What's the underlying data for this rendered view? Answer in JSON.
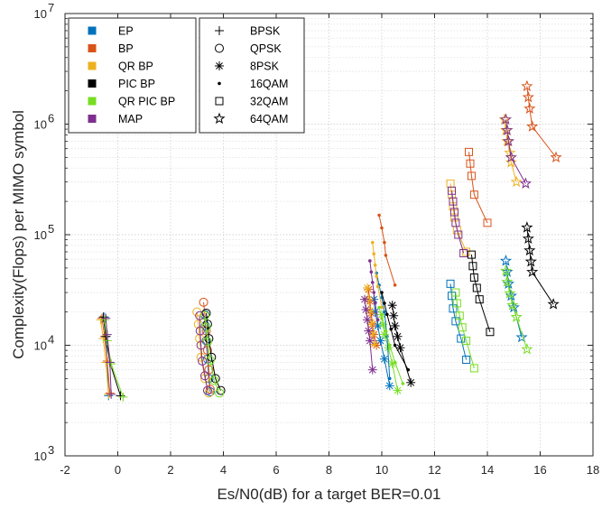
{
  "chart_data": {
    "type": "line",
    "xlabel": "Es/N0(dB) for a target BER=0.01",
    "ylabel": "Complexity(Flops) per MIMO symbol",
    "xlim": [
      -2,
      18
    ],
    "ylim": [
      1000,
      10000000
    ],
    "yscale": "log",
    "grid": true,
    "x_ticks": [
      "-2",
      "0",
      "2",
      "4",
      "6",
      "8",
      "10",
      "12",
      "14",
      "16",
      "18"
    ],
    "y_ticks": [
      {
        "base": "10",
        "exp": "3",
        "value": 1000
      },
      {
        "base": "10",
        "exp": "4",
        "value": 10000
      },
      {
        "base": "10",
        "exp": "5",
        "value": 100000
      },
      {
        "base": "10",
        "exp": "6",
        "value": 1000000
      },
      {
        "base": "10",
        "exp": "7",
        "value": 10000000
      }
    ],
    "algorithms": [
      {
        "name": "EP",
        "color": "#0072BD"
      },
      {
        "name": "BP",
        "color": "#D95319"
      },
      {
        "name": "QR BP",
        "color": "#EDB120"
      },
      {
        "name": "PIC BP",
        "color": "#000000"
      },
      {
        "name": "QR PIC BP",
        "color": "#77DD22"
      },
      {
        "name": "MAP",
        "color": "#7E2F8E"
      }
    ],
    "modulations": [
      {
        "name": "BPSK",
        "marker": "plus"
      },
      {
        "name": "QPSK",
        "marker": "circle"
      },
      {
        "name": "8PSK",
        "marker": "asterisk"
      },
      {
        "name": "16QAM",
        "marker": "dot"
      },
      {
        "name": "32QAM",
        "marker": "square"
      },
      {
        "name": "64QAM",
        "marker": "star"
      }
    ],
    "series": [
      {
        "algorithm": "EP",
        "modulation": "BPSK",
        "points": [
          [
            -0.5,
            18000
          ],
          [
            -0.45,
            12000
          ],
          [
            -0.4,
            7000
          ],
          [
            -0.35,
            3500
          ]
        ]
      },
      {
        "algorithm": "BP",
        "modulation": "BPSK",
        "points": [
          [
            -0.6,
            17500
          ],
          [
            -0.5,
            12000
          ],
          [
            -0.4,
            7200
          ],
          [
            -0.3,
            3700
          ]
        ]
      },
      {
        "algorithm": "QR BP",
        "modulation": "BPSK",
        "points": [
          [
            -0.65,
            17000
          ],
          [
            -0.55,
            11500
          ],
          [
            -0.45,
            7000
          ],
          [
            -0.35,
            3600
          ]
        ]
      },
      {
        "algorithm": "PIC BP",
        "modulation": "BPSK",
        "points": [
          [
            -0.55,
            18000
          ],
          [
            -0.45,
            12000
          ],
          [
            -0.3,
            7000
          ],
          [
            0.1,
            3500
          ]
        ]
      },
      {
        "algorithm": "QR PIC BP",
        "modulation": "BPSK",
        "points": [
          [
            -0.5,
            17000
          ],
          [
            -0.4,
            11000
          ],
          [
            -0.25,
            6800
          ],
          [
            0.2,
            3400
          ]
        ]
      },
      {
        "algorithm": "MAP",
        "modulation": "BPSK",
        "points": [
          [
            -0.45,
            17500
          ],
          [
            -0.4,
            12500
          ],
          [
            -0.3,
            7000
          ],
          [
            -0.25,
            3600
          ]
        ]
      },
      {
        "algorithm": "EP",
        "modulation": "QPSK",
        "points": [
          [
            3.3,
            19000
          ],
          [
            3.32,
            15000
          ],
          [
            3.35,
            11000
          ],
          [
            3.4,
            7500
          ],
          [
            3.45,
            5000
          ],
          [
            3.5,
            3800
          ]
        ]
      },
      {
        "algorithm": "BP",
        "modulation": "QPSK",
        "points": [
          [
            3.25,
            24500
          ],
          [
            3.3,
            18500
          ],
          [
            3.35,
            13500
          ],
          [
            3.4,
            9000
          ],
          [
            3.45,
            6000
          ],
          [
            3.5,
            4000
          ]
        ]
      },
      {
        "algorithm": "QR BP",
        "modulation": "QPSK",
        "points": [
          [
            3.0,
            20000
          ],
          [
            3.05,
            15500
          ],
          [
            3.1,
            11500
          ],
          [
            3.15,
            7800
          ],
          [
            3.3,
            5000
          ],
          [
            3.45,
            3700
          ]
        ]
      },
      {
        "algorithm": "PIC BP",
        "modulation": "QPSK",
        "points": [
          [
            3.35,
            19500
          ],
          [
            3.4,
            15500
          ],
          [
            3.45,
            11500
          ],
          [
            3.55,
            7800
          ],
          [
            3.7,
            5000
          ],
          [
            3.9,
            3900
          ]
        ]
      },
      {
        "algorithm": "QR PIC BP",
        "modulation": "QPSK",
        "points": [
          [
            3.3,
            18500
          ],
          [
            3.35,
            14500
          ],
          [
            3.4,
            10800
          ],
          [
            3.5,
            7300
          ],
          [
            3.65,
            4800
          ],
          [
            3.85,
            3700
          ]
        ]
      },
      {
        "algorithm": "MAP",
        "modulation": "QPSK",
        "points": [
          [
            3.1,
            18500
          ],
          [
            3.12,
            13500
          ],
          [
            3.15,
            10000
          ],
          [
            3.2,
            7200
          ],
          [
            3.3,
            5300
          ],
          [
            3.4,
            3900
          ]
        ]
      },
      {
        "algorithm": "EP",
        "modulation": "8PSK",
        "points": [
          [
            9.7,
            26000
          ],
          [
            9.75,
            20000
          ],
          [
            9.85,
            15000
          ],
          [
            9.95,
            11000
          ],
          [
            10.1,
            7500
          ],
          [
            10.3,
            4300
          ]
        ]
      },
      {
        "algorithm": "BP",
        "modulation": "8PSK",
        "points": [
          [
            9.5,
            32000
          ],
          [
            9.55,
            25000
          ],
          [
            9.6,
            19500
          ],
          [
            9.65,
            15500
          ],
          [
            9.7,
            12500
          ],
          [
            9.8,
            10000
          ]
        ]
      },
      {
        "algorithm": "QR BP",
        "modulation": "8PSK",
        "points": [
          [
            9.45,
            33000
          ],
          [
            9.5,
            26000
          ],
          [
            9.55,
            20500
          ],
          [
            9.6,
            16000
          ],
          [
            9.65,
            12800
          ],
          [
            9.7,
            10200
          ]
        ]
      },
      {
        "algorithm": "PIC BP",
        "modulation": "8PSK",
        "points": [
          [
            10.4,
            23000
          ],
          [
            10.45,
            18500
          ],
          [
            10.5,
            15000
          ],
          [
            10.6,
            12000
          ],
          [
            10.7,
            9500
          ],
          [
            11.1,
            4600
          ]
        ]
      },
      {
        "algorithm": "QR PIC BP",
        "modulation": "8PSK",
        "points": [
          [
            10.0,
            19000
          ],
          [
            10.05,
            15500
          ],
          [
            10.1,
            12500
          ],
          [
            10.25,
            9500
          ],
          [
            10.4,
            6800
          ],
          [
            10.6,
            3900
          ]
        ]
      },
      {
        "algorithm": "MAP",
        "modulation": "8PSK",
        "points": [
          [
            9.35,
            26000
          ],
          [
            9.4,
            21000
          ],
          [
            9.45,
            17000
          ],
          [
            9.5,
            13500
          ],
          [
            9.55,
            11000
          ],
          [
            9.65,
            6000
          ]
        ]
      },
      {
        "algorithm": "EP",
        "modulation": "16QAM",
        "points": [
          [
            9.8,
            45000
          ],
          [
            9.9,
            35000
          ],
          [
            10.0,
            27000
          ],
          [
            10.1,
            20000
          ],
          [
            10.2,
            12000
          ],
          [
            10.3,
            5000
          ]
        ]
      },
      {
        "algorithm": "BP",
        "modulation": "16QAM",
        "points": [
          [
            9.9,
            150000
          ],
          [
            10.0,
            115000
          ],
          [
            10.1,
            85000
          ],
          [
            10.15,
            65000
          ],
          [
            10.5,
            35000
          ]
        ]
      },
      {
        "algorithm": "QR BP",
        "modulation": "16QAM",
        "points": [
          [
            9.65,
            85000
          ],
          [
            9.7,
            67000
          ],
          [
            9.75,
            53000
          ],
          [
            9.8,
            42000
          ],
          [
            9.85,
            34000
          ],
          [
            10.0,
            22000
          ]
        ]
      },
      {
        "algorithm": "PIC BP",
        "modulation": "16QAM",
        "points": [
          [
            10.0,
            30000
          ],
          [
            10.1,
            24000
          ],
          [
            10.2,
            19000
          ],
          [
            10.35,
            14000
          ],
          [
            10.5,
            10000
          ],
          [
            11.0,
            6000
          ]
        ]
      },
      {
        "algorithm": "QR PIC BP",
        "modulation": "16QAM",
        "points": [
          [
            9.9,
            22000
          ],
          [
            10.0,
            17500
          ],
          [
            10.15,
            13500
          ],
          [
            10.3,
            10000
          ],
          [
            10.5,
            7000
          ],
          [
            10.8,
            4500
          ]
        ]
      },
      {
        "algorithm": "MAP",
        "modulation": "16QAM",
        "points": [
          [
            9.55,
            58000
          ],
          [
            9.6,
            46000
          ],
          [
            9.65,
            37000
          ],
          [
            9.7,
            30000
          ],
          [
            9.75,
            24000
          ],
          [
            9.85,
            17000
          ]
        ]
      },
      {
        "algorithm": "EP",
        "modulation": "32QAM",
        "points": [
          [
            12.6,
            36000
          ],
          [
            12.65,
            28000
          ],
          [
            12.7,
            21500
          ],
          [
            12.8,
            16500
          ],
          [
            13.0,
            11500
          ],
          [
            13.2,
            7400
          ]
        ]
      },
      {
        "algorithm": "BP",
        "modulation": "32QAM",
        "points": [
          [
            13.3,
            560000
          ],
          [
            13.35,
            440000
          ],
          [
            13.4,
            340000
          ],
          [
            13.5,
            230000
          ],
          [
            14.0,
            128000
          ]
        ]
      },
      {
        "algorithm": "QR BP",
        "modulation": "32QAM",
        "points": [
          [
            12.6,
            290000
          ],
          [
            12.65,
            230000
          ],
          [
            12.7,
            180000
          ],
          [
            12.75,
            143000
          ],
          [
            12.85,
            110000
          ],
          [
            13.2,
            70000
          ]
        ]
      },
      {
        "algorithm": "PIC BP",
        "modulation": "32QAM",
        "points": [
          [
            13.4,
            66000
          ],
          [
            13.45,
            52000
          ],
          [
            13.5,
            41000
          ],
          [
            13.6,
            33000
          ],
          [
            13.7,
            26000
          ],
          [
            14.1,
            13200
          ]
        ]
      },
      {
        "algorithm": "QR PIC BP",
        "modulation": "32QAM",
        "points": [
          [
            12.8,
            30000
          ],
          [
            12.85,
            24000
          ],
          [
            12.95,
            18500
          ],
          [
            13.05,
            14500
          ],
          [
            13.2,
            11000
          ],
          [
            13.5,
            6200
          ]
        ]
      },
      {
        "algorithm": "MAP",
        "modulation": "32QAM",
        "points": [
          [
            12.65,
            250000
          ],
          [
            12.7,
            200000
          ],
          [
            12.75,
            160000
          ],
          [
            12.8,
            128000
          ],
          [
            12.9,
            100000
          ],
          [
            13.1,
            68000
          ]
        ]
      },
      {
        "algorithm": "EP",
        "modulation": "64QAM",
        "points": [
          [
            14.7,
            58000
          ],
          [
            14.75,
            46000
          ],
          [
            14.8,
            36000
          ],
          [
            14.9,
            28000
          ],
          [
            15.0,
            22000
          ],
          [
            15.3,
            11800
          ]
        ]
      },
      {
        "algorithm": "BP",
        "modulation": "64QAM",
        "points": [
          [
            15.5,
            2200000
          ],
          [
            15.55,
            1750000
          ],
          [
            15.6,
            1380000
          ],
          [
            15.7,
            950000
          ],
          [
            16.6,
            500000
          ]
        ]
      },
      {
        "algorithm": "QR BP",
        "modulation": "64QAM",
        "points": [
          [
            14.65,
            1100000
          ],
          [
            14.7,
            880000
          ],
          [
            14.75,
            700000
          ],
          [
            14.85,
            550000
          ],
          [
            14.9,
            450000
          ],
          [
            15.1,
            300000
          ]
        ]
      },
      {
        "algorithm": "PIC BP",
        "modulation": "64QAM",
        "points": [
          [
            15.5,
            116000
          ],
          [
            15.55,
            92000
          ],
          [
            15.6,
            72000
          ],
          [
            15.65,
            57000
          ],
          [
            15.7,
            46000
          ],
          [
            16.5,
            23500
          ]
        ]
      },
      {
        "algorithm": "QR PIC BP",
        "modulation": "64QAM",
        "points": [
          [
            14.7,
            47000
          ],
          [
            14.75,
            37500
          ],
          [
            14.85,
            29500
          ],
          [
            14.95,
            23000
          ],
          [
            15.1,
            18000
          ],
          [
            15.5,
            9200
          ]
        ]
      },
      {
        "algorithm": "MAP",
        "modulation": "64QAM",
        "points": [
          [
            14.7,
            1100000
          ],
          [
            14.75,
            880000
          ],
          [
            14.8,
            700000
          ],
          [
            14.9,
            500000
          ],
          [
            15.45,
            290000
          ]
        ]
      }
    ]
  }
}
